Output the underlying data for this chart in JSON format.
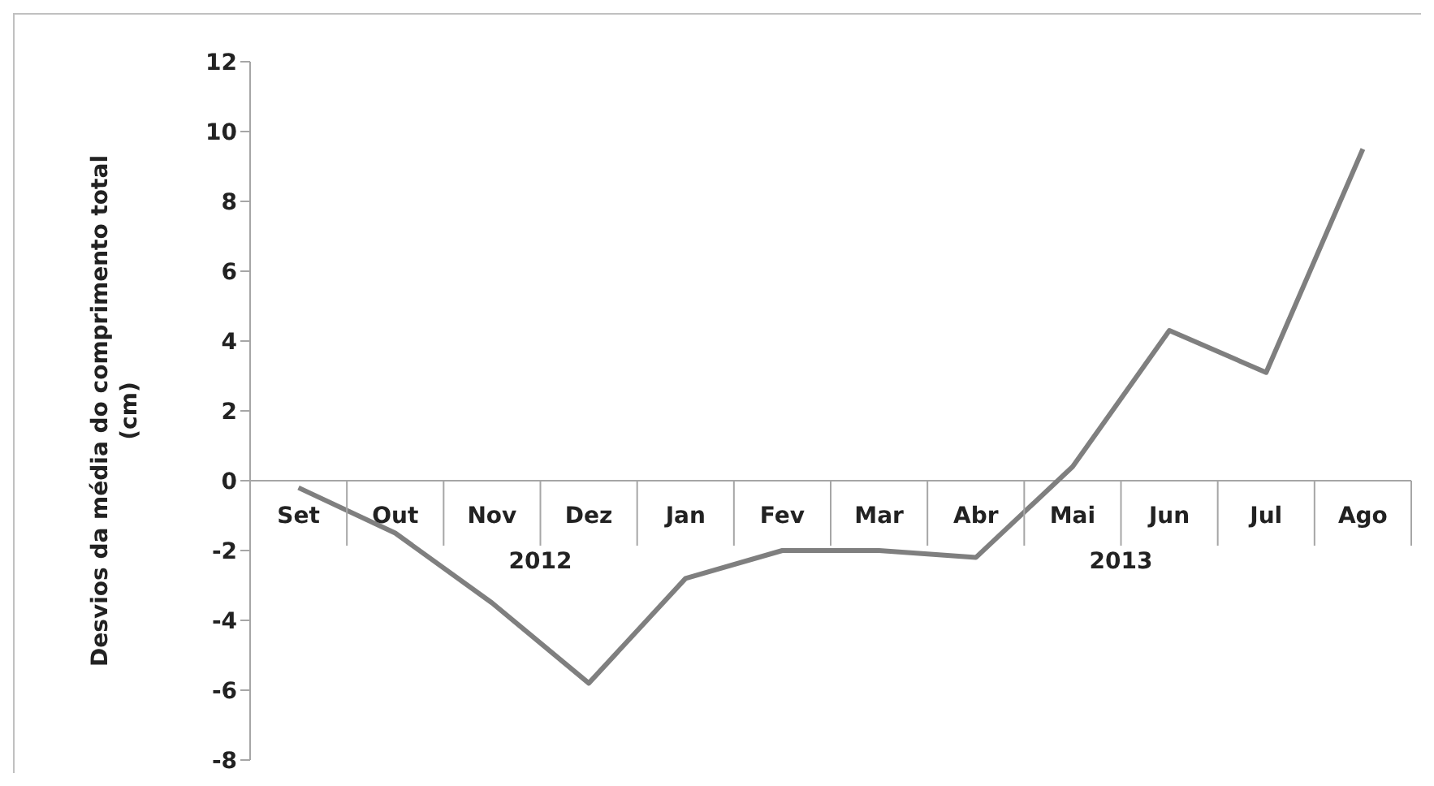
{
  "chart_data": {
    "type": "line",
    "ylabel": "Desvios da média do comprimento total (cm)",
    "categories": [
      "Set",
      "Out",
      "Nov",
      "Dez",
      "Jan",
      "Fev",
      "Mar",
      "Abr",
      "Mai",
      "Jun",
      "Jul",
      "Ago"
    ],
    "series": [
      {
        "color": "#7f7f7f",
        "values": [
          -0.2,
          -1.5,
          -3.5,
          -5.8,
          -2.8,
          -2.0,
          -2.0,
          -2.2,
          0.4,
          4.3,
          3.1,
          9.5
        ]
      }
    ],
    "ylim": [
      -8,
      12
    ],
    "yticks": [
      -8,
      -6,
      -4,
      -2,
      0,
      2,
      4,
      6,
      8,
      10,
      12
    ],
    "marker": "none",
    "line_style": "solid",
    "annotations": [
      "2012",
      "2013"
    ]
  }
}
